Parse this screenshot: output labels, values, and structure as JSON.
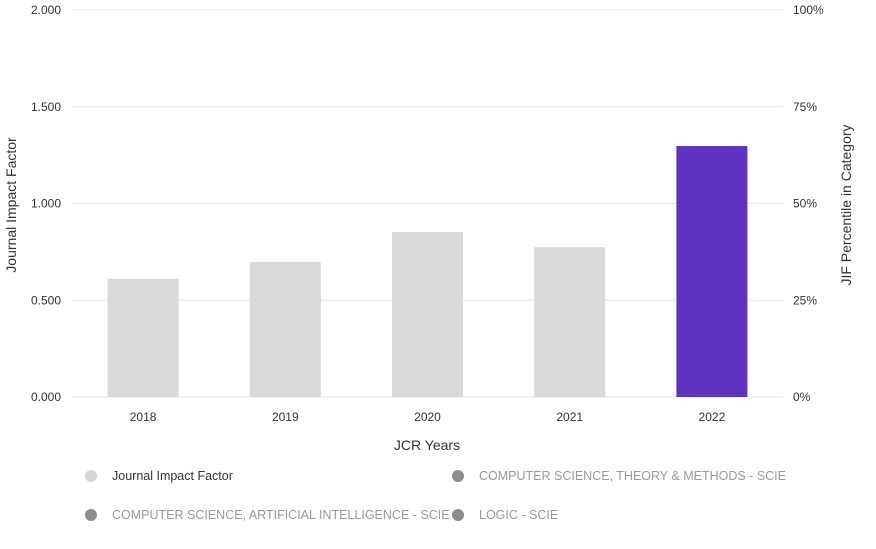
{
  "chart_data": {
    "type": "bar",
    "categories": [
      "2018",
      "2019",
      "2020",
      "2021",
      "2022"
    ],
    "values": [
      0.611,
      0.697,
      0.853,
      0.774,
      1.297
    ],
    "highlight_index": 4,
    "colors": {
      "bar": "#d9d9d9",
      "highlight": "#5e33bf",
      "grid": "#e6e6e6"
    },
    "xlabel": "JCR Years",
    "ylabel": "Journal Impact Factor",
    "y2label": "JIF Percentile in Category",
    "ylim": [
      0,
      2
    ],
    "y2lim": [
      0,
      100
    ],
    "yticks": [
      "0.000",
      "0.500",
      "1.000",
      "1.500",
      "2.000"
    ],
    "y2ticks": [
      "0%",
      "25%",
      "50%",
      "75%",
      "100%"
    ],
    "grid": true,
    "legend_position": "bottom"
  },
  "legend": [
    {
      "label": "Journal Impact Factor",
      "color": "#d4d4d4",
      "text_color": "#333333"
    },
    {
      "label": "COMPUTER SCIENCE, THEORY & METHODS - SCIE",
      "color": "#8c8c8c",
      "text_color": "#999999"
    },
    {
      "label": "COMPUTER SCIENCE, ARTIFICIAL INTELLIGENCE - SCIE",
      "color": "#8c8c8c",
      "text_color": "#999999"
    },
    {
      "label": "LOGIC - SCIE",
      "color": "#8c8c8c",
      "text_color": "#999999"
    }
  ]
}
